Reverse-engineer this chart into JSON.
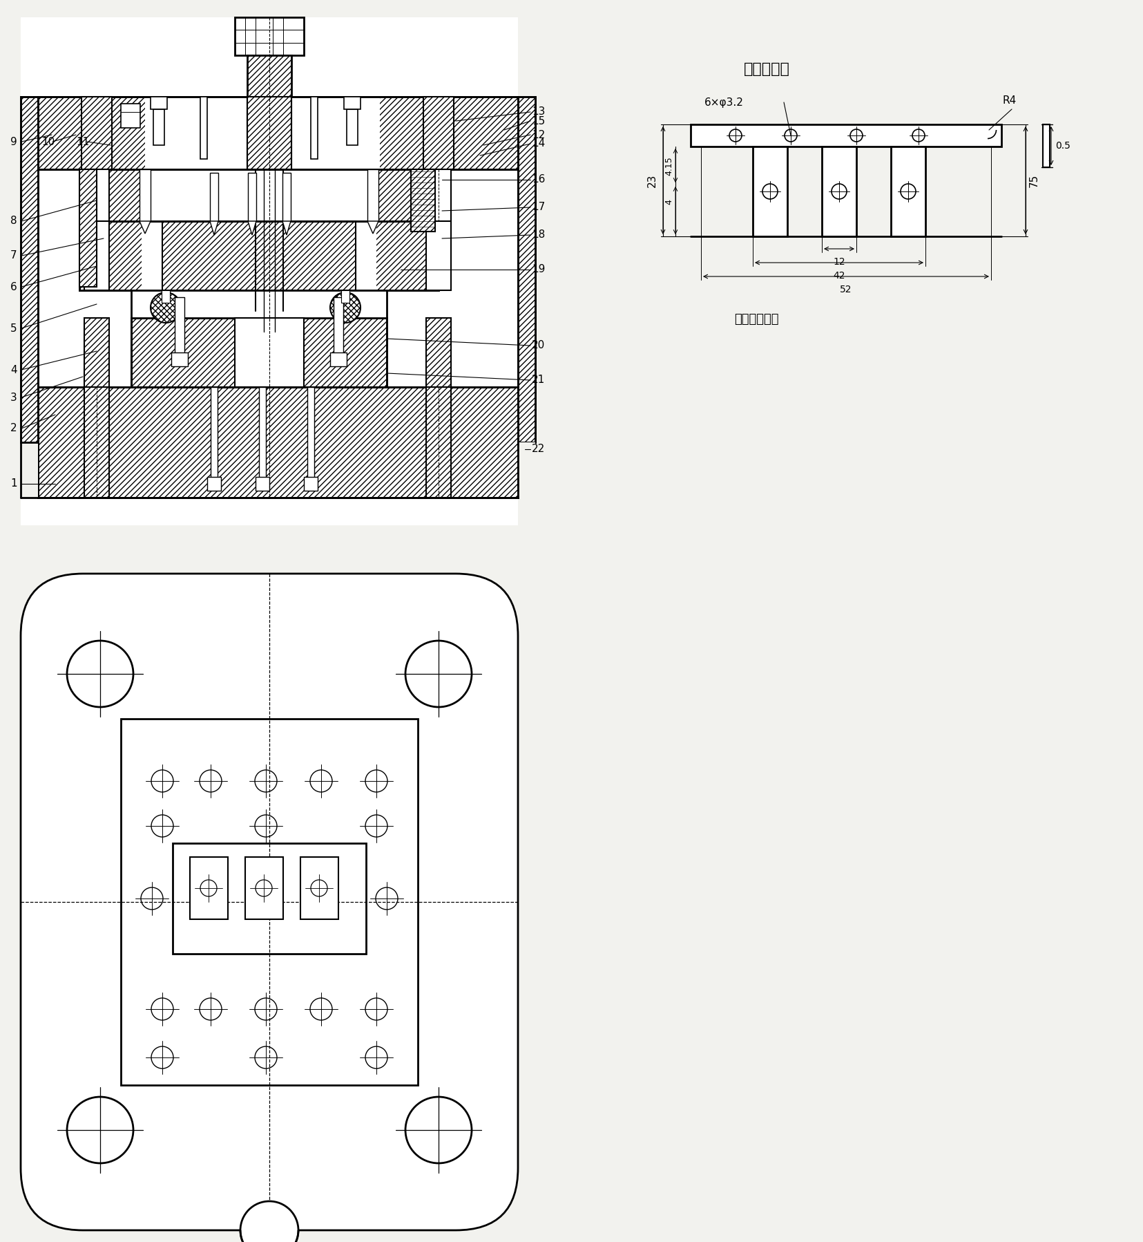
{
  "bg_color": "#f2f2ee",
  "line_color": "#000000",
  "title_right": "冲压零件图",
  "material_text": "材料：硅钢板",
  "dim_6xphi": "6×φ3.2",
  "dim_R4": "R4",
  "dim_23": "23",
  "dim_415": "4.15",
  "dim_4": "4",
  "dim_12": "12",
  "dim_42": "42",
  "dim_52": "52",
  "dim_75": "75",
  "dim_05": "0.5",
  "fig_width": 16.56,
  "fig_height": 17.97
}
